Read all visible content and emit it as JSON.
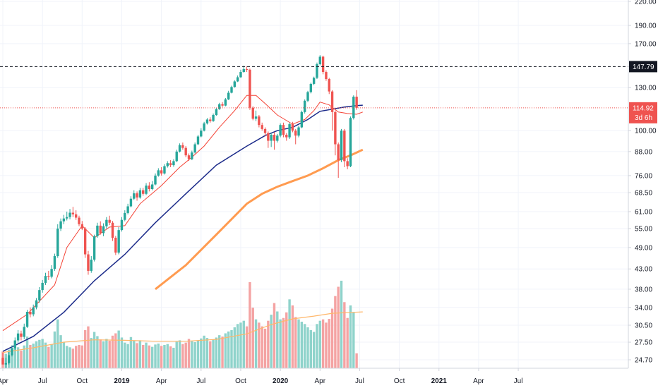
{
  "chart_data": {
    "type": "candlestick",
    "y_scale": "log",
    "ylim": [
      23,
      225
    ],
    "y_ticks": [
      "220.00",
      "190.00",
      "170.00",
      "147.79",
      "130.00",
      "114.92",
      "100.00",
      "88.00",
      "76.00",
      "68.50",
      "61.00",
      "55.00",
      "49.00",
      "43.00",
      "38.00",
      "34.00",
      "30.50",
      "27.50",
      "24.70"
    ],
    "y_tick_values": [
      220,
      190,
      170,
      147.79,
      130,
      114.92,
      100,
      88,
      76,
      68.5,
      61,
      55,
      49,
      43,
      38,
      34,
      30.5,
      27.5,
      24.7
    ],
    "x_ticks": [
      "Apr",
      "Jul",
      "Oct",
      "2019",
      "Apr",
      "Jul",
      "Oct",
      "2020",
      "Apr",
      "Jul",
      "Oct",
      "2021",
      "Apr",
      "Jul"
    ],
    "x_tick_weeks": [
      0,
      13,
      26,
      39,
      52,
      65,
      78,
      91,
      104,
      117,
      130,
      143,
      156,
      169
    ],
    "reference_line": {
      "value": 147.79,
      "label": "147.79",
      "color": "#131722"
    },
    "last_price": {
      "value": 114.92,
      "label": "114.92",
      "countdown": "3d 6h",
      "color": "#ef5350"
    },
    "colors": {
      "up": "#26a69a",
      "down": "#ef5350",
      "ma_fast": "#f44336",
      "ma_mid": "#1c2b8a",
      "ma_slow": "#ff9b50",
      "vol_up": "#8fd3cb",
      "vol_down": "#f4a3a3",
      "vol_ma": "#ffb76a"
    },
    "candles": [
      [
        25,
        24,
        25.8,
        24.6,
        3.6
      ],
      [
        24,
        24.2,
        25,
        23.5,
        3.1
      ],
      [
        24.2,
        25.4,
        25.9,
        24,
        4.0
      ],
      [
        25.4,
        26.5,
        27,
        25.2,
        4.4
      ],
      [
        26.5,
        27.8,
        28.3,
        26.2,
        4.7
      ],
      [
        27.8,
        29.0,
        29.6,
        27.4,
        4.5
      ],
      [
        29.0,
        28.4,
        29.5,
        27.8,
        3.8
      ],
      [
        28.4,
        30.2,
        30.8,
        28.0,
        4.9
      ],
      [
        30.2,
        33.1,
        33.5,
        30.0,
        6.8
      ],
      [
        33.1,
        32.6,
        34.0,
        32.0,
        5.0
      ],
      [
        32.6,
        34.0,
        34.6,
        32.2,
        5.3
      ],
      [
        34.0,
        35.5,
        36.0,
        33.6,
        5.8
      ],
      [
        35.5,
        37.8,
        38.5,
        35.0,
        6.1
      ],
      [
        37.8,
        39.5,
        40.2,
        37.2,
        6.3
      ],
      [
        39.5,
        41.2,
        42.0,
        39.0,
        5.5
      ],
      [
        41.2,
        41.0,
        42.5,
        40.2,
        4.6
      ],
      [
        41.0,
        43.0,
        44.0,
        40.6,
        5.2
      ],
      [
        43.0,
        46.5,
        47.2,
        42.5,
        7.9
      ],
      [
        46.5,
        55.0,
        56.5,
        46.0,
        10.5
      ],
      [
        55.0,
        57.5,
        58.5,
        54.2,
        7.1
      ],
      [
        57.5,
        58.5,
        59.8,
        56.5,
        5.6
      ],
      [
        58.5,
        59.0,
        61.0,
        57.8,
        4.8
      ],
      [
        59.0,
        60.6,
        62.0,
        58.2,
        4.5
      ],
      [
        60.6,
        60.0,
        62.8,
        59.0,
        4.2
      ],
      [
        60.0,
        58.8,
        61.5,
        58.0,
        4.8
      ],
      [
        58.8,
        56.5,
        59.5,
        55.8,
        5.0
      ],
      [
        56.5,
        55.0,
        57.6,
        54.5,
        4.9
      ],
      [
        55.0,
        47.0,
        55.5,
        46.0,
        8.2
      ],
      [
        47.0,
        42.5,
        48.0,
        41.5,
        9.0
      ],
      [
        42.5,
        45.5,
        46.5,
        42.0,
        6.5
      ],
      [
        45.5,
        52.5,
        53.0,
        45.0,
        7.8
      ],
      [
        52.5,
        56.0,
        57.0,
        52.0,
        6.9
      ],
      [
        56.0,
        53.5,
        57.5,
        53.0,
        6.2
      ],
      [
        53.5,
        55.8,
        56.8,
        52.5,
        5.8
      ],
      [
        55.8,
        58.0,
        59.0,
        55.0,
        6.3
      ],
      [
        58.0,
        57.0,
        59.5,
        56.2,
        5.9
      ],
      [
        57.0,
        52.0,
        57.6,
        51.0,
        7.0
      ],
      [
        52.0,
        47.5,
        52.6,
        46.8,
        7.5
      ],
      [
        47.5,
        54.5,
        55.5,
        47.0,
        8.1
      ],
      [
        54.5,
        58.0,
        59.0,
        54.0,
        6.6
      ],
      [
        58.0,
        60.5,
        61.5,
        57.5,
        5.5
      ],
      [
        60.5,
        63.0,
        64.0,
        60.0,
        5.2
      ],
      [
        63.0,
        66.0,
        67.0,
        62.6,
        6.7
      ],
      [
        66.0,
        68.2,
        69.5,
        65.5,
        5.9
      ],
      [
        68.2,
        66.5,
        69.0,
        65.2,
        5.4
      ],
      [
        66.5,
        69.5,
        70.5,
        66.0,
        6.0
      ],
      [
        69.5,
        68.0,
        70.5,
        67.2,
        5.0
      ],
      [
        68.0,
        71.5,
        72.6,
        67.5,
        5.5
      ],
      [
        71.5,
        70.0,
        73.0,
        69.0,
        4.9
      ],
      [
        70.0,
        72.0,
        73.5,
        69.5,
        4.6
      ],
      [
        72.0,
        76.0,
        77.0,
        71.6,
        5.1
      ],
      [
        76.0,
        78.5,
        79.5,
        75.5,
        5.3
      ],
      [
        78.5,
        77.0,
        80.0,
        76.0,
        4.8
      ],
      [
        77.0,
        80.5,
        81.5,
        76.5,
        5.0
      ],
      [
        80.5,
        82.0,
        83.0,
        79.8,
        5.2
      ],
      [
        82.0,
        81.0,
        83.5,
        80.0,
        4.7
      ],
      [
        81.0,
        83.0,
        84.0,
        80.2,
        4.4
      ],
      [
        83.0,
        88.0,
        89.0,
        82.5,
        5.7
      ],
      [
        88.0,
        91.5,
        92.5,
        87.5,
        6.0
      ],
      [
        91.5,
        90.0,
        93.0,
        89.0,
        5.2
      ],
      [
        90.0,
        86.0,
        91.0,
        85.0,
        5.5
      ],
      [
        86.0,
        84.0,
        87.0,
        83.2,
        6.3
      ],
      [
        84.0,
        87.5,
        88.5,
        83.5,
        5.8
      ],
      [
        87.5,
        92.0,
        93.0,
        87.0,
        5.6
      ],
      [
        92.0,
        96.5,
        97.5,
        91.5,
        6.0
      ],
      [
        96.5,
        100.0,
        101.5,
        96.0,
        6.4
      ],
      [
        100.0,
        104.5,
        105.5,
        99.5,
        7.0
      ],
      [
        104.5,
        107.0,
        108.0,
        103.8,
        6.5
      ],
      [
        107.0,
        106.0,
        108.5,
        105.0,
        5.8
      ],
      [
        106.0,
        110.0,
        111.0,
        105.5,
        6.2
      ],
      [
        110.0,
        114.0,
        115.0,
        109.5,
        6.6
      ],
      [
        114.0,
        117.5,
        118.5,
        113.5,
        7.1
      ],
      [
        117.5,
        116.5,
        119.0,
        115.5,
        6.8
      ],
      [
        116.5,
        121.0,
        122.0,
        116.0,
        7.5
      ],
      [
        121.0,
        126.0,
        127.5,
        120.5,
        7.9
      ],
      [
        126.0,
        130.5,
        131.5,
        125.5,
        8.2
      ],
      [
        130.5,
        135.0,
        136.0,
        130.0,
        8.8
      ],
      [
        135.0,
        138.5,
        140.0,
        134.5,
        9.5
      ],
      [
        138.5,
        143.0,
        145.0,
        138.0,
        9.8
      ],
      [
        143.0,
        145.5,
        148.5,
        142.5,
        10.2
      ],
      [
        145.5,
        145.0,
        148.0,
        143.0,
        9.0
      ],
      [
        145.0,
        115.0,
        146.0,
        113.5,
        18.5
      ],
      [
        115.0,
        107.5,
        116.0,
        106.5,
        13.0
      ],
      [
        107.5,
        109.0,
        113.0,
        106.0,
        10.5
      ],
      [
        109.0,
        103.5,
        110.0,
        102.0,
        9.8
      ],
      [
        103.5,
        101.0,
        105.0,
        100.0,
        9.0
      ],
      [
        101.0,
        98.5,
        102.0,
        96.5,
        8.5
      ],
      [
        98.5,
        94.0,
        99.5,
        90.0,
        10.2
      ],
      [
        94.0,
        97.5,
        98.5,
        90.5,
        11.5
      ],
      [
        97.5,
        94.0,
        99.0,
        89.0,
        14.0
      ],
      [
        94.0,
        97.0,
        98.0,
        93.0,
        12.2
      ],
      [
        97.0,
        103.5,
        104.5,
        96.0,
        10.5
      ],
      [
        103.5,
        97.5,
        105.0,
        96.0,
        10.8
      ],
      [
        97.5,
        96.0,
        98.5,
        94.0,
        12.0
      ],
      [
        96.0,
        104.0,
        105.0,
        95.0,
        14.8
      ],
      [
        104.0,
        100.0,
        105.5,
        99.0,
        13.5
      ],
      [
        100.0,
        97.0,
        101.0,
        92.0,
        11.0
      ],
      [
        97.0,
        102.0,
        103.0,
        96.0,
        10.5
      ],
      [
        102.0,
        112.0,
        113.0,
        101.5,
        10.0
      ],
      [
        112.0,
        120.0,
        121.0,
        111.0,
        9.5
      ],
      [
        120.0,
        126.5,
        127.5,
        119.0,
        8.8
      ],
      [
        126.5,
        133.0,
        134.0,
        125.5,
        8.2
      ],
      [
        133.0,
        138.0,
        139.0,
        132.0,
        7.8
      ],
      [
        138.0,
        150.0,
        151.5,
        137.0,
        9.5
      ],
      [
        150.0,
        157.0,
        158.5,
        149.0,
        10.2
      ],
      [
        157.0,
        143.0,
        158.0,
        141.0,
        10.5
      ],
      [
        143.0,
        137.0,
        144.5,
        135.5,
        9.8
      ],
      [
        137.0,
        127.0,
        138.0,
        125.0,
        10.6
      ],
      [
        127.0,
        112.0,
        128.0,
        100.0,
        12.8
      ],
      [
        112.0,
        92.0,
        113.0,
        86.0,
        15.5
      ],
      [
        92.0,
        83.5,
        93.0,
        75.0,
        17.5
      ],
      [
        83.5,
        100.0,
        101.0,
        82.5,
        18.8
      ],
      [
        100.0,
        83.0,
        101.0,
        80.0,
        14.2
      ],
      [
        83.0,
        80.5,
        84.5,
        79.0,
        10.8
      ],
      [
        80.5,
        108.0,
        109.0,
        80.0,
        13.5
      ],
      [
        108.0,
        123.0,
        124.0,
        107.0,
        12.0
      ],
      [
        123.0,
        114.92,
        128.0,
        113.5,
        3.2
      ]
    ],
    "ma_fast_pts": [
      [
        0,
        29.5
      ],
      [
        8,
        32.6
      ],
      [
        17,
        39
      ],
      [
        21,
        49
      ],
      [
        26,
        56
      ],
      [
        30,
        52
      ],
      [
        35,
        55.5
      ],
      [
        40,
        56
      ],
      [
        45,
        64
      ],
      [
        52,
        71.5
      ],
      [
        58,
        80
      ],
      [
        62,
        85
      ],
      [
        66,
        91
      ],
      [
        71,
        102
      ],
      [
        76,
        113
      ],
      [
        80,
        124
      ],
      [
        83,
        124
      ],
      [
        86,
        118
      ],
      [
        90,
        110
      ],
      [
        95,
        104
      ],
      [
        99,
        107
      ],
      [
        102,
        113
      ],
      [
        104,
        119
      ],
      [
        107,
        117
      ],
      [
        110,
        112
      ],
      [
        113,
        111
      ],
      [
        116,
        110.5
      ],
      [
        118,
        112
      ]
    ],
    "ma_mid_pts": [
      [
        0,
        26
      ],
      [
        10,
        28.5
      ],
      [
        20,
        33
      ],
      [
        30,
        40
      ],
      [
        40,
        47
      ],
      [
        50,
        57
      ],
      [
        60,
        68
      ],
      [
        70,
        81
      ],
      [
        80,
        91
      ],
      [
        86,
        97
      ],
      [
        90,
        100
      ],
      [
        95,
        102
      ],
      [
        100,
        107
      ],
      [
        104,
        112.5
      ],
      [
        108,
        114
      ],
      [
        112,
        115.5
      ],
      [
        116,
        116.5
      ],
      [
        118,
        116.8
      ]
    ],
    "ma_slow_pts": [
      [
        50,
        38
      ],
      [
        60,
        44
      ],
      [
        70,
        53
      ],
      [
        80,
        64
      ],
      [
        85,
        68
      ],
      [
        90,
        71
      ],
      [
        95,
        73.5
      ],
      [
        100,
        76
      ],
      [
        105,
        79.5
      ],
      [
        110,
        83.5
      ],
      [
        114,
        86
      ],
      [
        118,
        89
      ]
    ],
    "vol_ma_pts": [
      [
        0,
        3.4
      ],
      [
        10,
        4.4
      ],
      [
        20,
        5.6
      ],
      [
        30,
        6.1
      ],
      [
        40,
        6.0
      ],
      [
        50,
        5.8
      ],
      [
        60,
        5.8
      ],
      [
        70,
        6.2
      ],
      [
        80,
        7.4
      ],
      [
        88,
        9.4
      ],
      [
        95,
        10.6
      ],
      [
        102,
        11.2
      ],
      [
        108,
        11.8
      ],
      [
        118,
        12.1
      ]
    ]
  }
}
